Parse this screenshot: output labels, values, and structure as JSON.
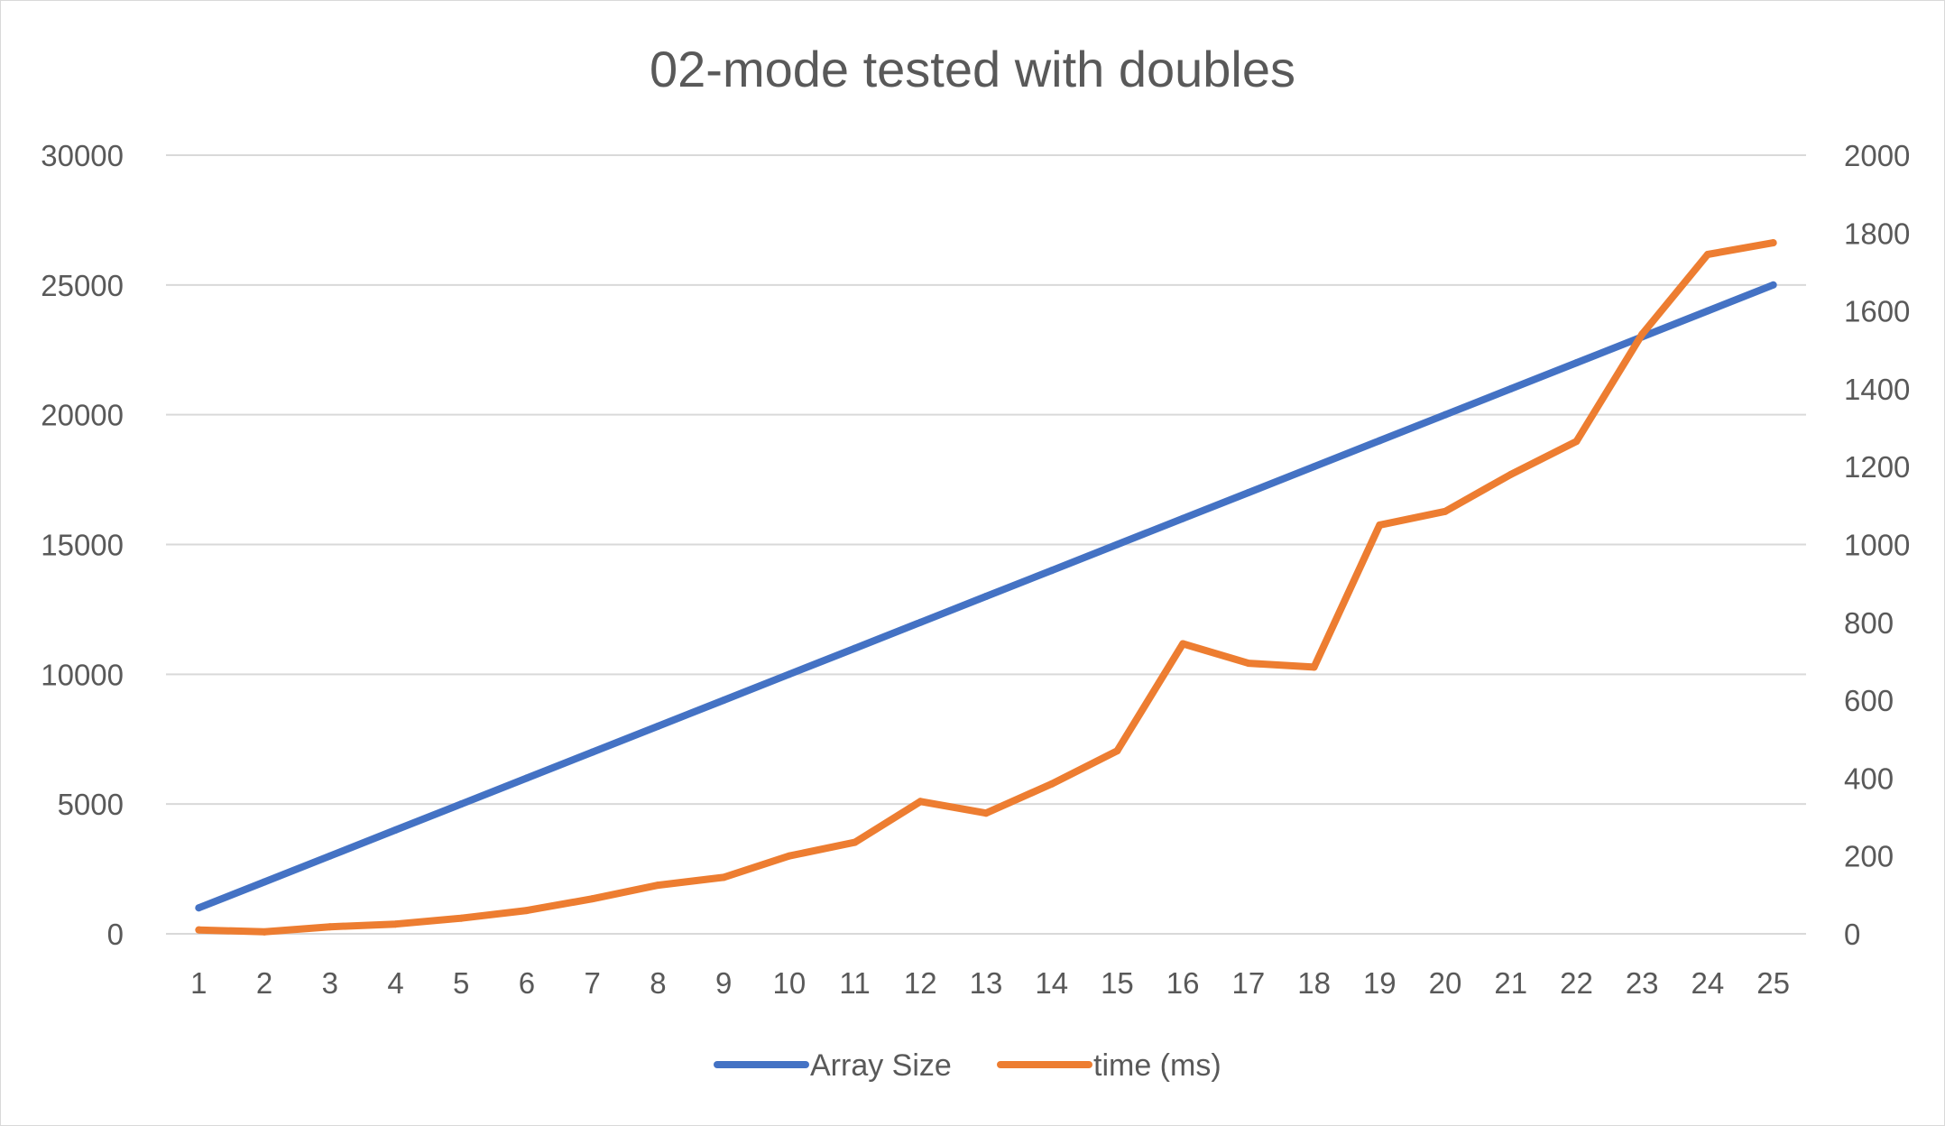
{
  "chart_data": {
    "type": "line",
    "title": "02-mode tested with doubles",
    "xlabel": "",
    "ylabel": "",
    "categories": [
      "1",
      "2",
      "3",
      "4",
      "5",
      "6",
      "7",
      "8",
      "9",
      "10",
      "11",
      "12",
      "13",
      "14",
      "15",
      "16",
      "17",
      "18",
      "19",
      "20",
      "21",
      "22",
      "23",
      "24",
      "25"
    ],
    "y_left": {
      "ylim": [
        0,
        30000
      ],
      "ticks": [
        "0",
        "5000",
        "10000",
        "15000",
        "20000",
        "25000",
        "30000"
      ]
    },
    "y_right": {
      "ylim": [
        0,
        2000
      ],
      "ticks": [
        "0",
        "200",
        "400",
        "600",
        "800",
        "1000",
        "1200",
        "1400",
        "1600",
        "1800",
        "2000"
      ]
    },
    "series": [
      {
        "name": "Array Size",
        "axis": "left",
        "color": "#4472c4",
        "values": [
          1000,
          2000,
          3000,
          4000,
          5000,
          6000,
          7000,
          8000,
          9000,
          10000,
          11000,
          12000,
          13000,
          14000,
          15000,
          16000,
          17000,
          18000,
          19000,
          20000,
          21000,
          22000,
          23000,
          24000,
          25000
        ]
      },
      {
        "name": "time (ms)",
        "axis": "right",
        "color": "#ed7d31",
        "values": [
          10,
          5,
          18,
          25,
          40,
          60,
          90,
          125,
          145,
          200,
          235,
          340,
          310,
          385,
          470,
          745,
          695,
          685,
          1050,
          1085,
          1180,
          1265,
          1540,
          1745,
          1775
        ]
      }
    ],
    "grid": true,
    "legend": "bottom"
  }
}
